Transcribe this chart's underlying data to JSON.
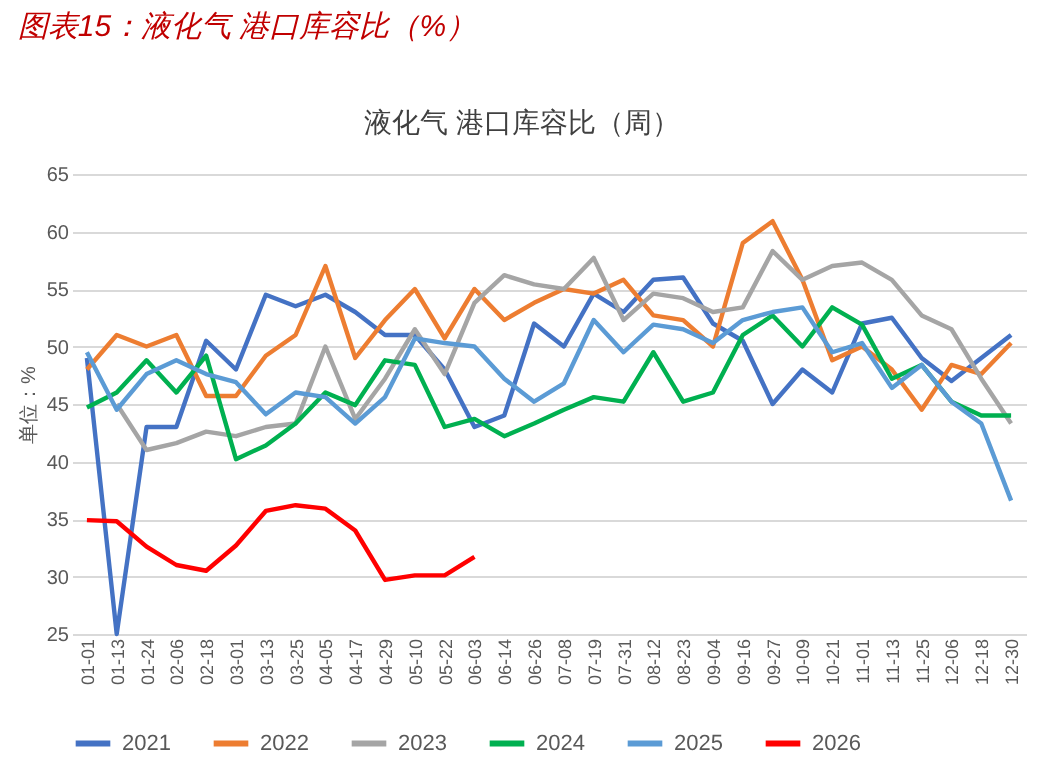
{
  "chart_data": {
    "type": "line",
    "title": "图表15：液化气 港口库容比（%）",
    "subtitle": "液化气 港口库容比（周）",
    "ylabel": "单位：%",
    "categories": [
      "01-01",
      "01-13",
      "01-24",
      "02-06",
      "02-18",
      "03-01",
      "03-13",
      "03-25",
      "04-05",
      "04-17",
      "04-29",
      "05-10",
      "05-22",
      "06-03",
      "06-14",
      "06-26",
      "07-08",
      "07-19",
      "07-31",
      "08-12",
      "08-23",
      "09-04",
      "09-16",
      "09-27",
      "10-09",
      "10-21",
      "11-01",
      "11-13",
      "11-25",
      "12-06",
      "12-18",
      "12-30"
    ],
    "series": [
      {
        "name": "2021",
        "color": "#4472c4",
        "values": [
          49,
          25,
          43,
          43,
          50.5,
          48,
          54.5,
          53.5,
          54.5,
          53,
          51,
          51,
          48,
          43,
          44,
          52,
          50,
          54.6,
          53,
          55.8,
          56,
          52,
          50.5,
          45,
          48,
          46,
          52,
          52.5,
          49,
          47,
          49,
          51
        ]
      },
      {
        "name": "2022",
        "color": "#ed7d31",
        "values": [
          48,
          51,
          50,
          51,
          45.7,
          45.7,
          49.2,
          51,
          57,
          49,
          52.3,
          55,
          50.7,
          55,
          52.3,
          53.8,
          55,
          54.6,
          55.8,
          52.7,
          52.3,
          50,
          59,
          60.9,
          55.8,
          48.8,
          50,
          48,
          44.5,
          48.4,
          47.6,
          50.3
        ]
      },
      {
        "name": "2023",
        "color": "#a5a5a5",
        "values": [
          null,
          45,
          41,
          41.6,
          42.6,
          42.2,
          43,
          43.3,
          50,
          43.7,
          47.2,
          51.5,
          47.6,
          53.8,
          56.2,
          55.4,
          55,
          57.7,
          52.3,
          54.6,
          54.2,
          53,
          53.4,
          58.3,
          55.8,
          57,
          57.3,
          55.8,
          52.7,
          51.5,
          47.2,
          43.3
        ]
      },
      {
        "name": "2024",
        "color": "#00b050",
        "values": [
          44.7,
          46,
          48.8,
          46,
          49.2,
          40.2,
          41.4,
          43.3,
          46,
          44.9,
          48.8,
          48.4,
          43,
          43.7,
          42.2,
          43.3,
          44.5,
          45.6,
          45.2,
          49.5,
          45.2,
          46,
          51,
          52.7,
          50,
          53.4,
          51.9,
          47.2,
          48.4,
          45.2,
          44,
          44
        ]
      },
      {
        "name": "2025",
        "color": "#5b9bd5",
        "values": [
          49.5,
          44.5,
          47.6,
          48.8,
          47.6,
          46.9,
          44.1,
          46,
          45.6,
          43.3,
          45.6,
          50.7,
          50.3,
          50,
          47.2,
          45.2,
          46.8,
          52.3,
          49.5,
          51.9,
          51.5,
          50.3,
          52.3,
          53,
          53.4,
          49.5,
          50.3,
          46.4,
          48.4,
          45.2,
          43.3,
          36.6
        ]
      },
      {
        "name": "2026",
        "color": "#ff0000",
        "values": [
          34.9,
          34.8,
          32.6,
          31,
          30.5,
          32.7,
          35.7,
          36.2,
          35.9,
          34,
          29.7,
          30.1,
          30.1,
          31.7,
          null,
          null,
          null,
          null,
          null,
          null,
          null,
          null,
          null,
          null,
          null,
          null,
          null,
          null,
          null,
          null,
          null,
          null
        ]
      }
    ],
    "ylim": [
      25,
      65
    ],
    "yticks": [
      25,
      30,
      35,
      40,
      45,
      50,
      55,
      60,
      65
    ],
    "grid": "y",
    "legend": "bottom",
    "line_style": "solid",
    "marker": "none"
  }
}
